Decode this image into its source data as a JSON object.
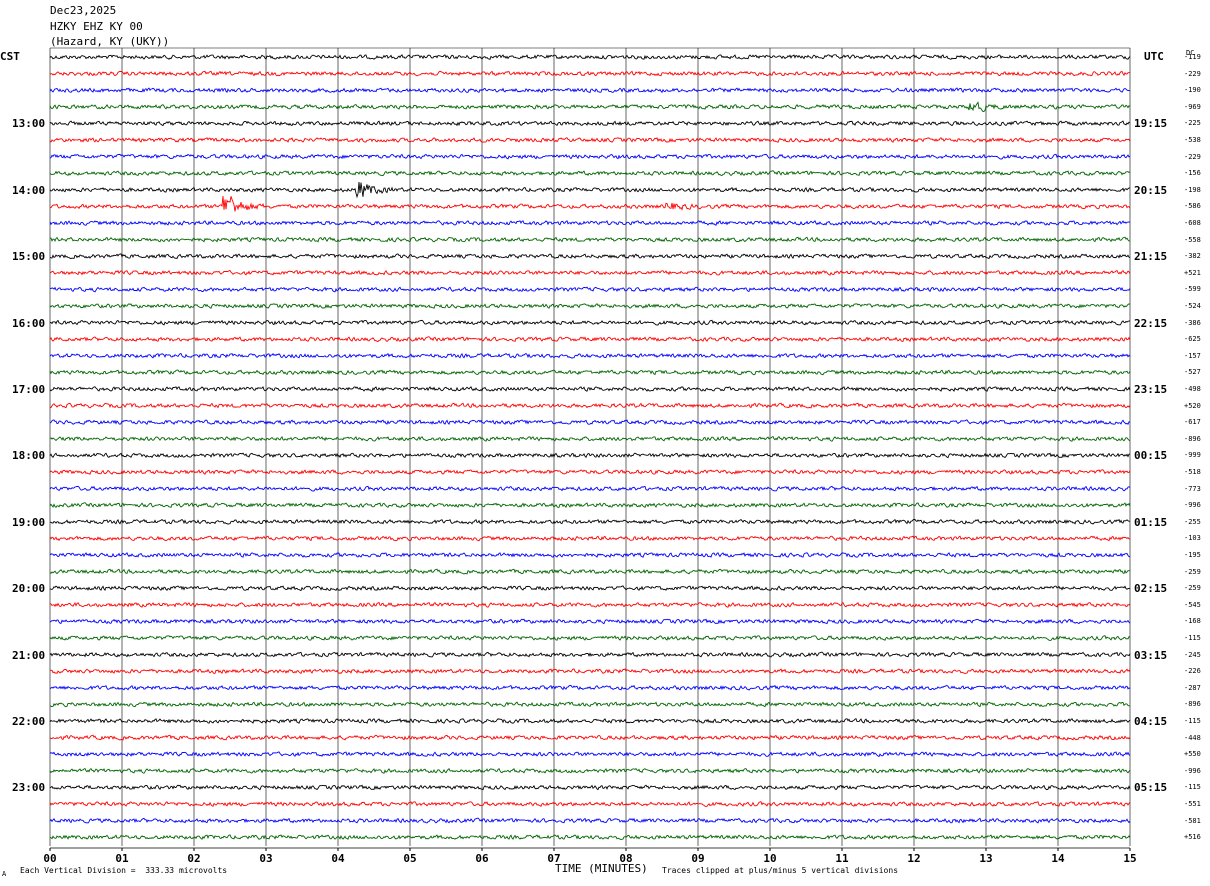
{
  "header": {
    "date": "Dec23,2025",
    "station": "HZKY EHZ KY 00",
    "location": "(Hazard, KY (UKY))"
  },
  "timezones": {
    "left": "CST",
    "right": "UTC",
    "dc": "DC"
  },
  "footer": {
    "scale": "Each Vertical Division =  333.33 microvolts",
    "xlabel": "TIME (MINUTES)",
    "clip_note": "Traces clipped at plus/minus 5 vertical divisions",
    "corner_mark": "A"
  },
  "colors": {
    "trace_cycle": [
      "#000000",
      "#ff0000",
      "#0000ff",
      "#006400"
    ],
    "grid": "#000000"
  },
  "chart_data": {
    "type": "line",
    "subtype": "seismic-helicorder",
    "xlabel": "TIME (MINUTES)",
    "xlim": [
      0,
      15
    ],
    "x_ticks": [
      "00",
      "01",
      "02",
      "03",
      "04",
      "05",
      "06",
      "07",
      "08",
      "09",
      "10",
      "11",
      "12",
      "13",
      "14",
      "15"
    ],
    "traces_per_hour": 4,
    "left_hour_labels": [
      "13:00",
      "14:00",
      "15:00",
      "16:00",
      "17:00",
      "18:00",
      "19:00",
      "20:00",
      "21:00",
      "22:00",
      "23:00"
    ],
    "right_hour_labels": [
      "19:15",
      "20:15",
      "21:15",
      "22:15",
      "23:15",
      "00:15",
      "01:15",
      "02:15",
      "03:15",
      "04:15",
      "05:15"
    ],
    "dc_offsets": [
      "-119",
      "-229",
      "-190",
      "-969",
      "-225",
      "-538",
      "-229",
      "-156",
      "-198",
      "-586",
      "-608",
      "-558",
      "-382",
      "+521",
      "-599",
      "-524",
      "-386",
      "-625",
      "-157",
      "-527",
      "-498",
      "+520",
      "-617",
      "-896",
      "-999",
      "-518",
      "-773",
      "-996",
      "-255",
      "-103",
      "-195",
      "-259",
      "-259",
      "-545",
      "-168",
      "-115",
      "-245",
      "-226",
      "-287",
      "-896",
      "-115",
      "-448",
      "+550",
      "-996",
      "-115",
      "-551",
      "-581",
      "+516"
    ],
    "events": [
      {
        "trace": 8,
        "minute": 4.3,
        "amplitude": 3.0
      },
      {
        "trace": 9,
        "minute": 2.45,
        "amplitude": 5.0
      },
      {
        "trace": 3,
        "minute": 12.8,
        "amplitude": 1.8
      },
      {
        "trace": 9,
        "minute": 8.6,
        "amplitude": 1.2
      }
    ]
  }
}
